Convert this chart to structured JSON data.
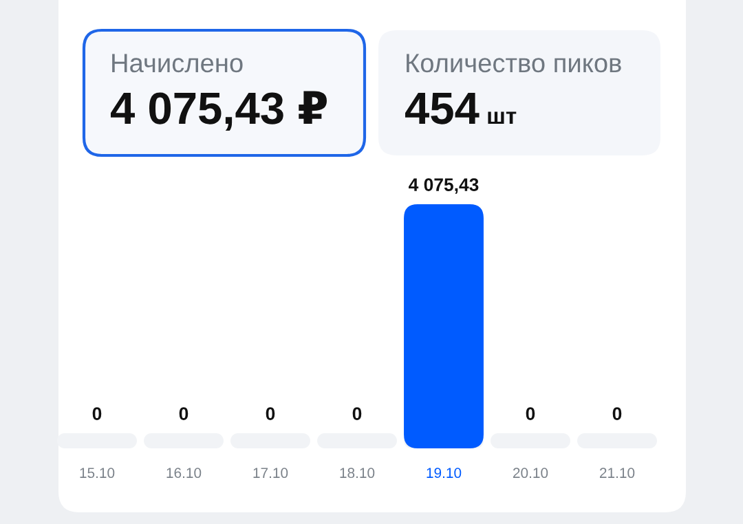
{
  "chart_data": [
    {
      "type": "other",
      "title": "Начислено",
      "annotations": [
        "4 075,43 ₽"
      ],
      "color": "#1f66e8"
    },
    {
      "type": "other",
      "title": "Количество пиков",
      "annotations": [
        "454",
        "шт"
      ]
    },
    {
      "type": "bar",
      "categories": [
        "15.10",
        "16.10",
        "17.10",
        "18.10",
        "19.10",
        "20.10",
        "21.10"
      ],
      "values": [
        0,
        0,
        0,
        0,
        4075.43,
        0,
        0
      ],
      "color": "#005bff",
      "value_labels": [
        "0",
        "0",
        "0",
        "0",
        "4 075,43",
        "0",
        "0"
      ],
      "tick_labels": "x"
    }
  ]
}
